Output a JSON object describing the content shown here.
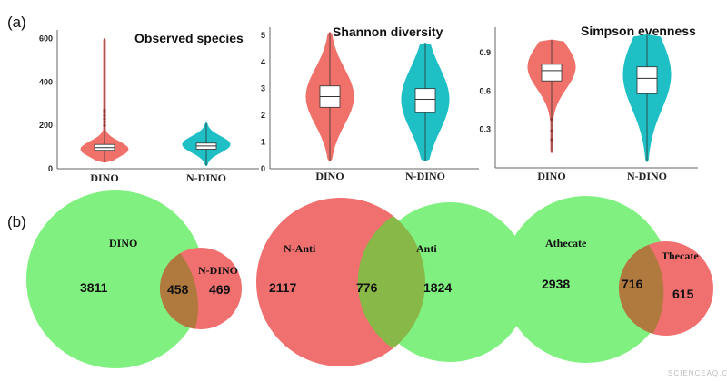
{
  "panel_labels": {
    "a": "(a)",
    "b": "(b)"
  },
  "watermark": "SCIENCEAQ.COM",
  "colors": {
    "red": "#f0706a",
    "teal": "#1ebfc5",
    "green": "#80f080",
    "vred": "#f07070",
    "overlap": "#b07a3e",
    "overlap2": "#88b848"
  },
  "chart_data": [
    {
      "type": "violin",
      "title": "Observed species",
      "categories": [
        "DINO",
        "N-DINO"
      ],
      "yticks": [
        0,
        200,
        400,
        600
      ],
      "ylim": [
        0,
        640
      ],
      "series": [
        {
          "category": "DINO",
          "color": "#f0706a",
          "min": 30,
          "q1": 85,
          "median": 97,
          "q3": 112,
          "max": 600,
          "peak": 90,
          "outliers": [
            200,
            215,
            230,
            245,
            260,
            270
          ]
        },
        {
          "category": "N-DINO",
          "color": "#1ebfc5",
          "min": 15,
          "q1": 90,
          "median": 105,
          "q3": 118,
          "max": 210,
          "peak": 112,
          "outliers": []
        }
      ]
    },
    {
      "type": "violin",
      "title": "Shannon diversity",
      "categories": [
        "DINO",
        "N-DINO"
      ],
      "yticks": [
        0,
        1,
        2,
        3,
        4,
        5
      ],
      "ylim": [
        0,
        5.3
      ],
      "series": [
        {
          "category": "DINO",
          "color": "#f0706a",
          "min": 0.3,
          "q1": 2.3,
          "median": 2.7,
          "q3": 3.1,
          "max": 5.1,
          "peak": 2.7,
          "outliers": []
        },
        {
          "category": "N-DINO",
          "color": "#1ebfc5",
          "min": 0.3,
          "q1": 2.1,
          "median": 2.6,
          "q3": 3.0,
          "max": 4.7,
          "peak": 2.6,
          "outliers": []
        }
      ]
    },
    {
      "type": "violin",
      "title": "Simpson evenness",
      "categories": [
        "DINO",
        "N-DINO"
      ],
      "yticks": [
        0.3,
        0.6,
        0.9
      ],
      "ylim": [
        0,
        1.1
      ],
      "series": [
        {
          "category": "DINO",
          "color": "#f0706a",
          "min": 0.12,
          "q1": 0.68,
          "median": 0.76,
          "q3": 0.81,
          "max": 1.0,
          "peak": 0.79,
          "outliers": [
            0.22,
            0.29,
            0.38
          ]
        },
        {
          "category": "N-DINO",
          "color": "#1ebfc5",
          "min": 0.05,
          "q1": 0.58,
          "median": 0.7,
          "q3": 0.79,
          "max": 1.04,
          "peak": 0.73,
          "outliers": []
        }
      ]
    }
  ],
  "venn": [
    {
      "left_label": "DINO",
      "right_label": "N-DINO",
      "left_only": "3811",
      "shared": "458",
      "right_only": "469"
    },
    {
      "left_label": "N-Anti",
      "right_label": "Anti",
      "left_only": "2117",
      "shared": "776",
      "right_only": "1824"
    },
    {
      "left_label": "Athecate",
      "right_label": "Thecate",
      "left_only": "2938",
      "shared": "716",
      "right_only": "615"
    }
  ]
}
